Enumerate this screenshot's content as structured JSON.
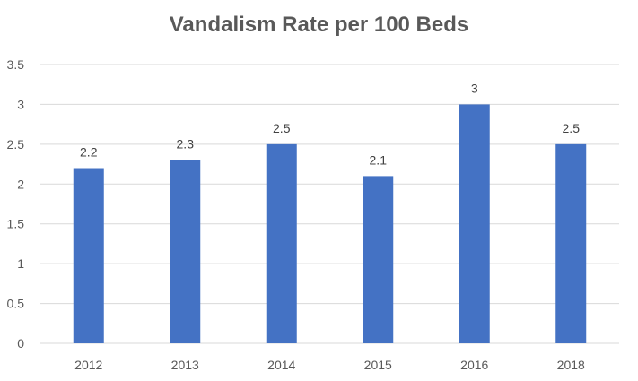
{
  "chart_data": {
    "type": "bar",
    "title": "Vandalism Rate per 100 Beds",
    "xlabel": "",
    "ylabel": "",
    "categories": [
      "2012",
      "2013",
      "2014",
      "2015",
      "2016",
      "2018"
    ],
    "values": [
      2.2,
      2.3,
      2.5,
      2.1,
      3,
      2.5
    ],
    "data_labels": [
      "2.2",
      "2.3",
      "2.5",
      "2.1",
      "3",
      "2.5"
    ],
    "ylim": [
      0,
      3.5
    ],
    "yticks": [
      "0",
      "0.5",
      "1",
      "1.5",
      "2",
      "2.5",
      "3",
      "3.5"
    ],
    "ytick_values": [
      0,
      0.5,
      1,
      1.5,
      2,
      2.5,
      3,
      3.5
    ],
    "grid": true,
    "legend": "none",
    "bar_color": "#4472C4",
    "grid_color": "#D9D9D9"
  }
}
